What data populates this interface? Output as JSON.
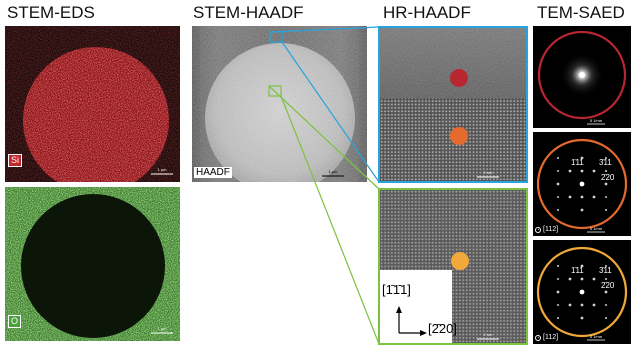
{
  "headers": {
    "stem_eds": "STEM-EDS",
    "stem_haadf": "STEM-HAADF",
    "hr_haadf": "HR-HAADF",
    "tem_saed": "TEM-SAED"
  },
  "eds_si": {
    "element_label": "Si",
    "scale_bar": "1 µm"
  },
  "eds_o": {
    "element_label": "O",
    "scale_bar": "1 µm"
  },
  "haadf": {
    "label": "HAADF",
    "scale_bar": "1 µm"
  },
  "hr_top": {
    "scale_bar": "2 nm"
  },
  "hr_bottom": {
    "scale_bar": "2 nm",
    "axis_vertical": "[1̄1̄1]",
    "axis_horizontal": "[2̄20]"
  },
  "saed_1": {
    "scale_bar": "5 1/nm"
  },
  "saed_2": {
    "spot_a": "1̄11",
    "spot_b": "3̄11",
    "spot_c": "2̄20",
    "zone_axis": "[112]",
    "scale_bar": "5 1/nm"
  },
  "saed_3": {
    "spot_a": "1̄11",
    "spot_b": "3̄11",
    "spot_c": "2̄20",
    "zone_axis": "[112]",
    "scale_bar": "5 1/nm"
  },
  "colors": {
    "si_map": "#c0262c",
    "o_map": "#4aa03a",
    "blue_frame": "#27a4dd",
    "green_frame": "#7dc142",
    "marker_red": "#b82632",
    "marker_orange": "#e46a2e",
    "marker_yellow": "#f2a93b"
  }
}
